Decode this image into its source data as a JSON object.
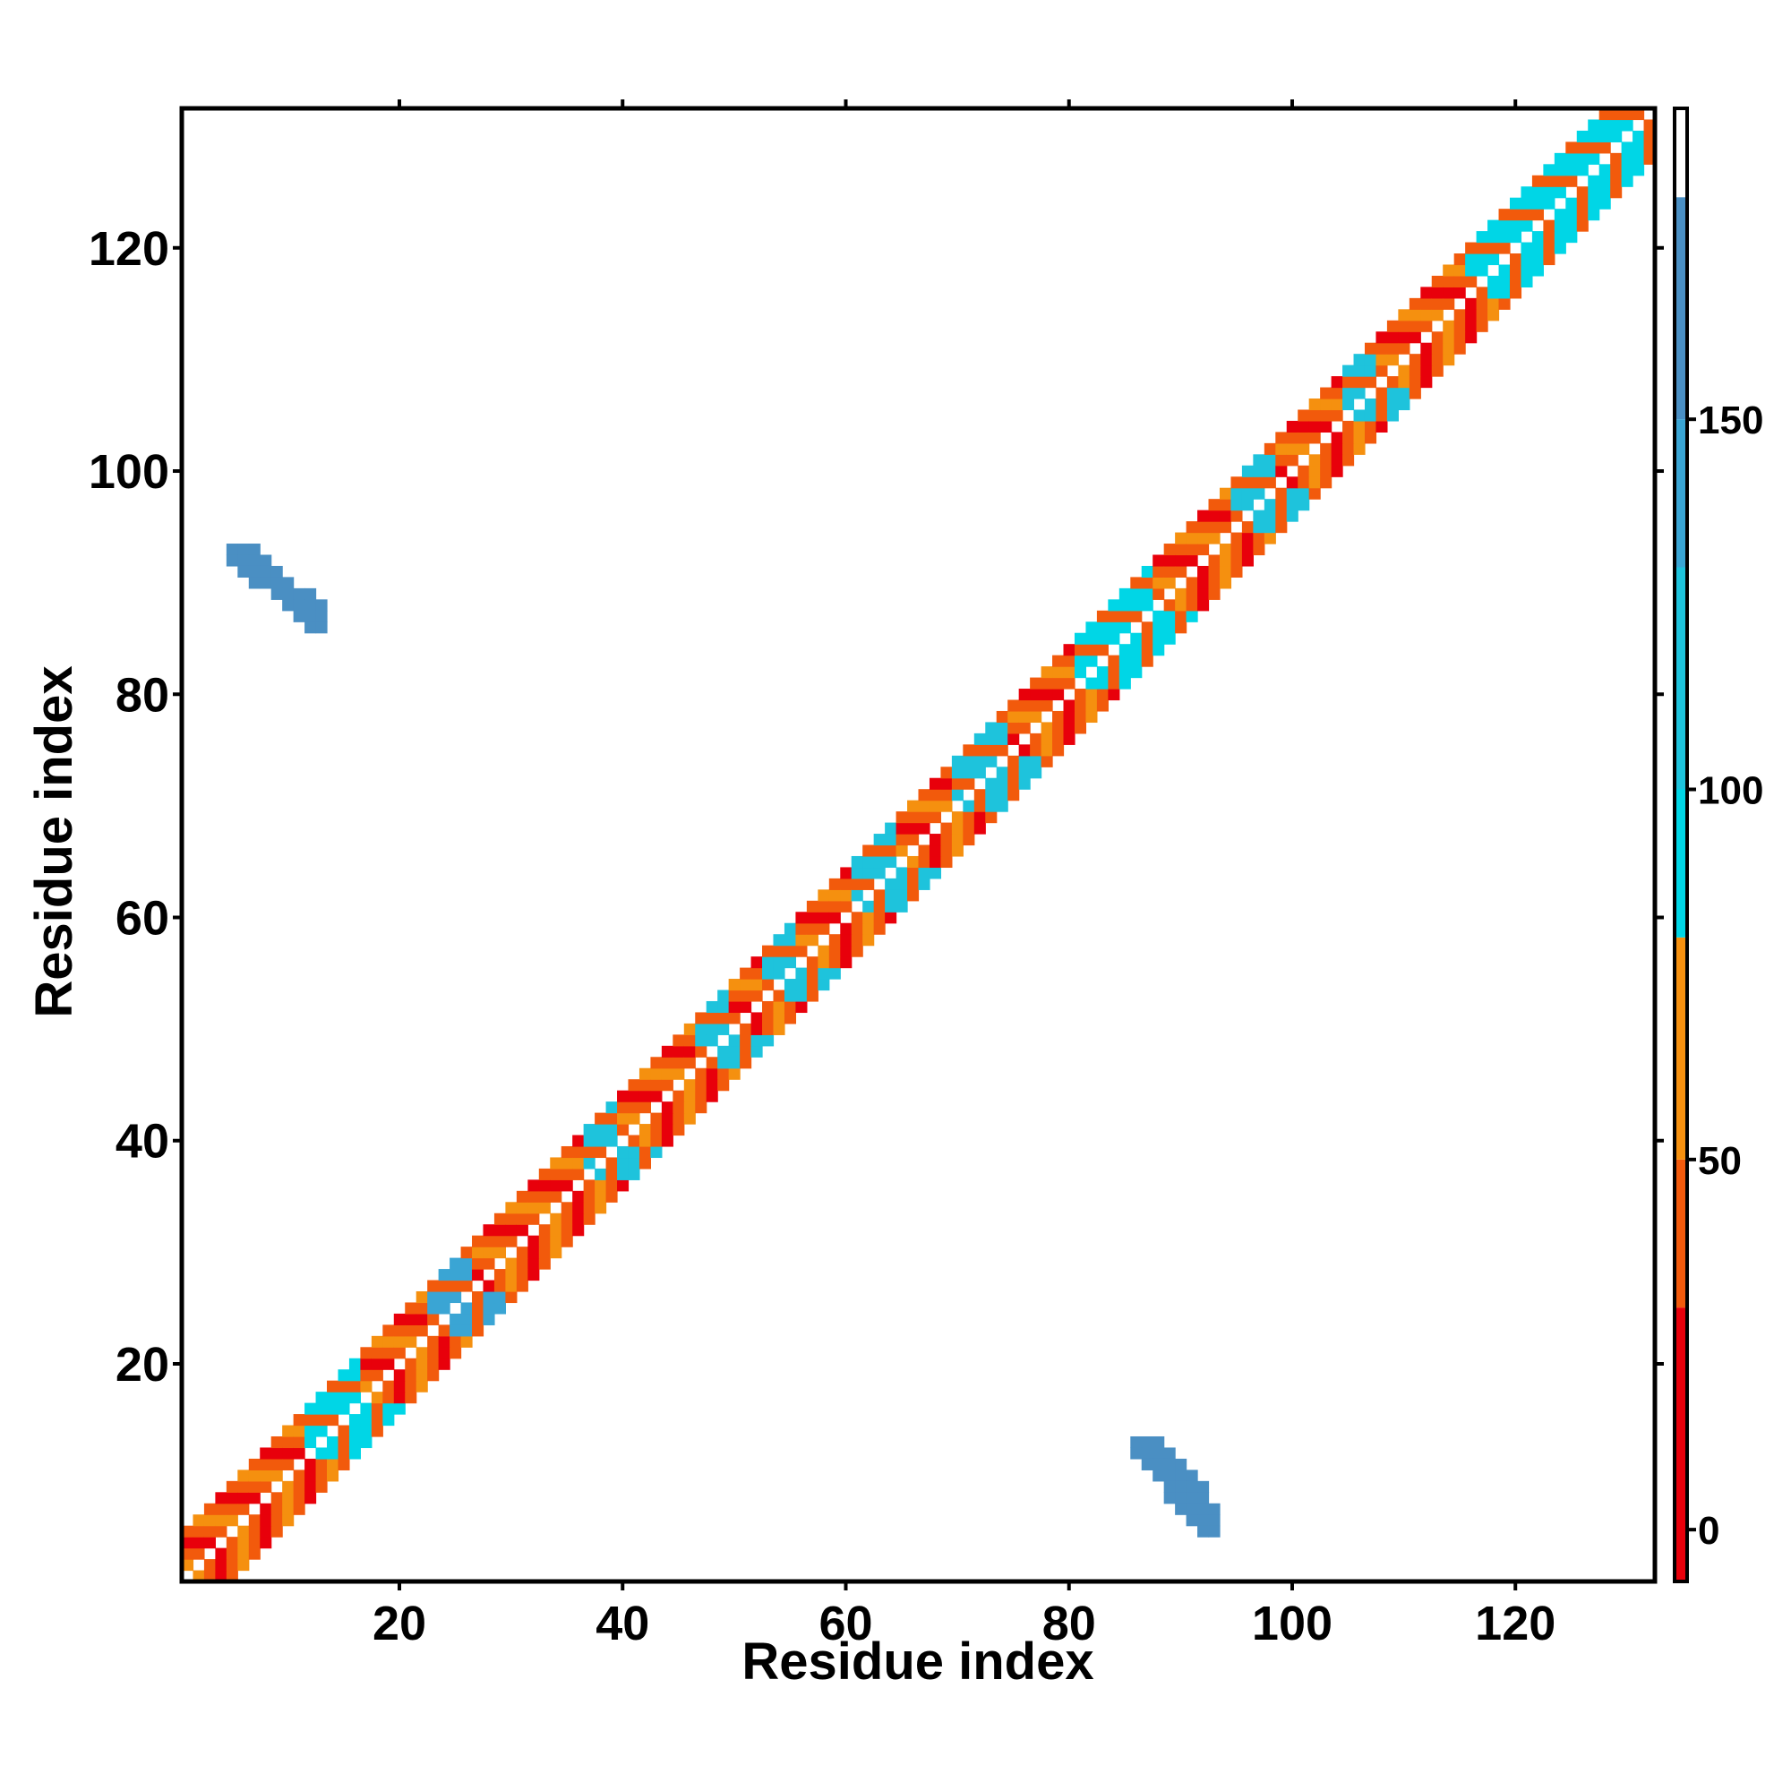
{
  "chart_data": {
    "type": "heatmap",
    "title": "",
    "xlabel": "Residue index",
    "ylabel": "Residue index",
    "xlim": [
      0.5,
      132.5
    ],
    "ylim": [
      0.5,
      132.5
    ],
    "xticks": [
      20,
      40,
      60,
      80,
      100,
      120
    ],
    "yticks": [
      20,
      40,
      60,
      80,
      100,
      120
    ],
    "n_residues": 132,
    "diagonal_band": {
      "offsets": [
        1,
        2,
        3,
        4
      ],
      "note_values": "cell value depends on residue pair; colors per colorbar",
      "segments": [
        {
          "start": 1,
          "end": 11,
          "value": 5
        },
        {
          "start": 12,
          "end": 16,
          "value": 95
        },
        {
          "start": 17,
          "end": 22,
          "value": 40
        },
        {
          "start": 23,
          "end": 26,
          "value": 130
        },
        {
          "start": 27,
          "end": 30,
          "value": 55
        },
        {
          "start": 31,
          "end": 33,
          "value": 10
        },
        {
          "start": 34,
          "end": 36,
          "value": 60
        },
        {
          "start": 37,
          "end": 39,
          "value": 100
        },
        {
          "start": 40,
          "end": 46,
          "value": 45
        },
        {
          "start": 47,
          "end": 49,
          "value": 110
        },
        {
          "start": 50,
          "end": 52,
          "value": 20
        },
        {
          "start": 53,
          "end": 55,
          "value": 100
        },
        {
          "start": 56,
          "end": 60,
          "value": 50
        },
        {
          "start": 61,
          "end": 64,
          "value": 100
        },
        {
          "start": 65,
          "end": 69,
          "value": 40
        },
        {
          "start": 70,
          "end": 74,
          "value": 100
        },
        {
          "start": 75,
          "end": 80,
          "value": 10
        },
        {
          "start": 81,
          "end": 87,
          "value": 90
        },
        {
          "start": 88,
          "end": 94,
          "value": 20
        },
        {
          "start": 95,
          "end": 98,
          "value": 100
        },
        {
          "start": 99,
          "end": 104,
          "value": 25
        },
        {
          "start": 105,
          "end": 107,
          "value": 100
        },
        {
          "start": 108,
          "end": 115,
          "value": 30
        },
        {
          "start": 116,
          "end": 132,
          "value": 95
        }
      ]
    },
    "off_diagonal_patches": [
      {
        "x": [
          5,
          13
        ],
        "y": [
          86,
          93
        ],
        "value": 160
      },
      {
        "x": [
          86,
          93
        ],
        "y": [
          5,
          13
        ],
        "value": 160
      }
    ],
    "colorbar": {
      "ticks": [
        0,
        50,
        100,
        150
      ],
      "range": [
        -7,
        192
      ],
      "bands": [
        {
          "from": -7,
          "to": 30,
          "color": "#e8000b"
        },
        {
          "from": 30,
          "to": 50,
          "color": "#f25a0c"
        },
        {
          "from": 50,
          "to": 80,
          "color": "#f5900f"
        },
        {
          "from": 80,
          "to": 100,
          "color": "#00d6e6"
        },
        {
          "from": 100,
          "to": 130,
          "color": "#1ec3dc"
        },
        {
          "from": 130,
          "to": 150,
          "color": "#3aa5d4"
        },
        {
          "from": 150,
          "to": 180,
          "color": "#4a8fc3"
        },
        {
          "from": 180,
          "to": 192,
          "color": "#ffffff"
        }
      ]
    }
  }
}
